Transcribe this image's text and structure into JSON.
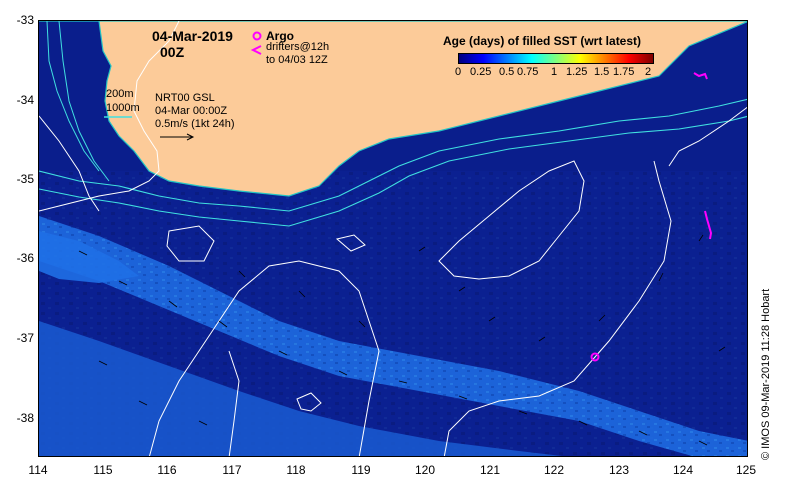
{
  "title": {
    "date": "04-Mar-2019",
    "time": "00Z"
  },
  "legend": {
    "argo": "Argo",
    "drifters_line1": "drifters@12h",
    "drifters_line2": "to 04/03 12Z",
    "contour_200": "200m",
    "contour_1000": "1000m",
    "product": "NRT00 GSL",
    "product_time": "04-Mar 00:00Z",
    "velocity_scale": "0.5m/s (1kt 24h)"
  },
  "colorbar": {
    "title": "Age (days) of filled SST (wrt latest)",
    "ticks": [
      "0",
      "0.25",
      "0.5",
      "0.75",
      "1",
      "1.25",
      "1.5",
      "1.75",
      "2"
    ],
    "range": [
      0,
      2
    ],
    "colors": [
      "#00007f",
      "#0000ff",
      "#007fff",
      "#00ffff",
      "#7fff7f",
      "#ffff00",
      "#ff7f00",
      "#ff0000",
      "#7f0000"
    ]
  },
  "axes": {
    "lat_ticks": [
      "-33",
      "-34",
      "-35",
      "-36",
      "-37",
      "-38"
    ],
    "lon_ticks": [
      "114",
      "115",
      "116",
      "117",
      "118",
      "119",
      "120",
      "121",
      "122",
      "123",
      "124",
      "125"
    ],
    "lat_range": [
      -38.5,
      -33
    ],
    "lon_range": [
      114,
      125
    ]
  },
  "map_colors": {
    "ocean": "#0a1e8c",
    "land": "#fccb99",
    "band": "#1f6fe6",
    "contour": "#ffffff",
    "bathymetry": "#40e0e0",
    "argo": "#ff00ff"
  },
  "credit": "IMOS 09-Mar-2019 11:28 Hobart",
  "credit_symbol": "©"
}
